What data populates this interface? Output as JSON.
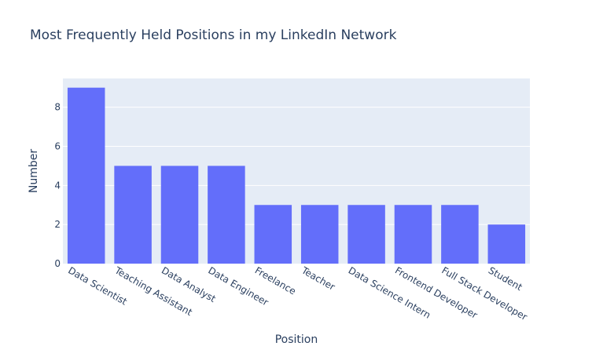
{
  "chart_data": {
    "type": "bar",
    "title": "Most Frequently Held Positions in my LinkedIn Network",
    "xlabel": "Position",
    "ylabel": "Number",
    "categories": [
      "Data Scientist",
      "Teaching Assistant",
      "Data Analyst",
      "Data Engineer",
      "Freelance",
      "Teacher",
      "Data Science Intern",
      "Frontend Developer",
      "Full Stack Developer",
      "Student"
    ],
    "values": [
      9,
      5,
      5,
      5,
      3,
      3,
      3,
      3,
      3,
      2
    ],
    "ylim": [
      0,
      9.47
    ],
    "yticks": [
      0,
      2,
      4,
      6,
      8
    ],
    "grid": true,
    "legend": "none",
    "colors": {
      "bar": "#636efa",
      "plot_background": "#e5ecf6",
      "grid": "#ffffff",
      "text": "#2a3f5f"
    }
  }
}
